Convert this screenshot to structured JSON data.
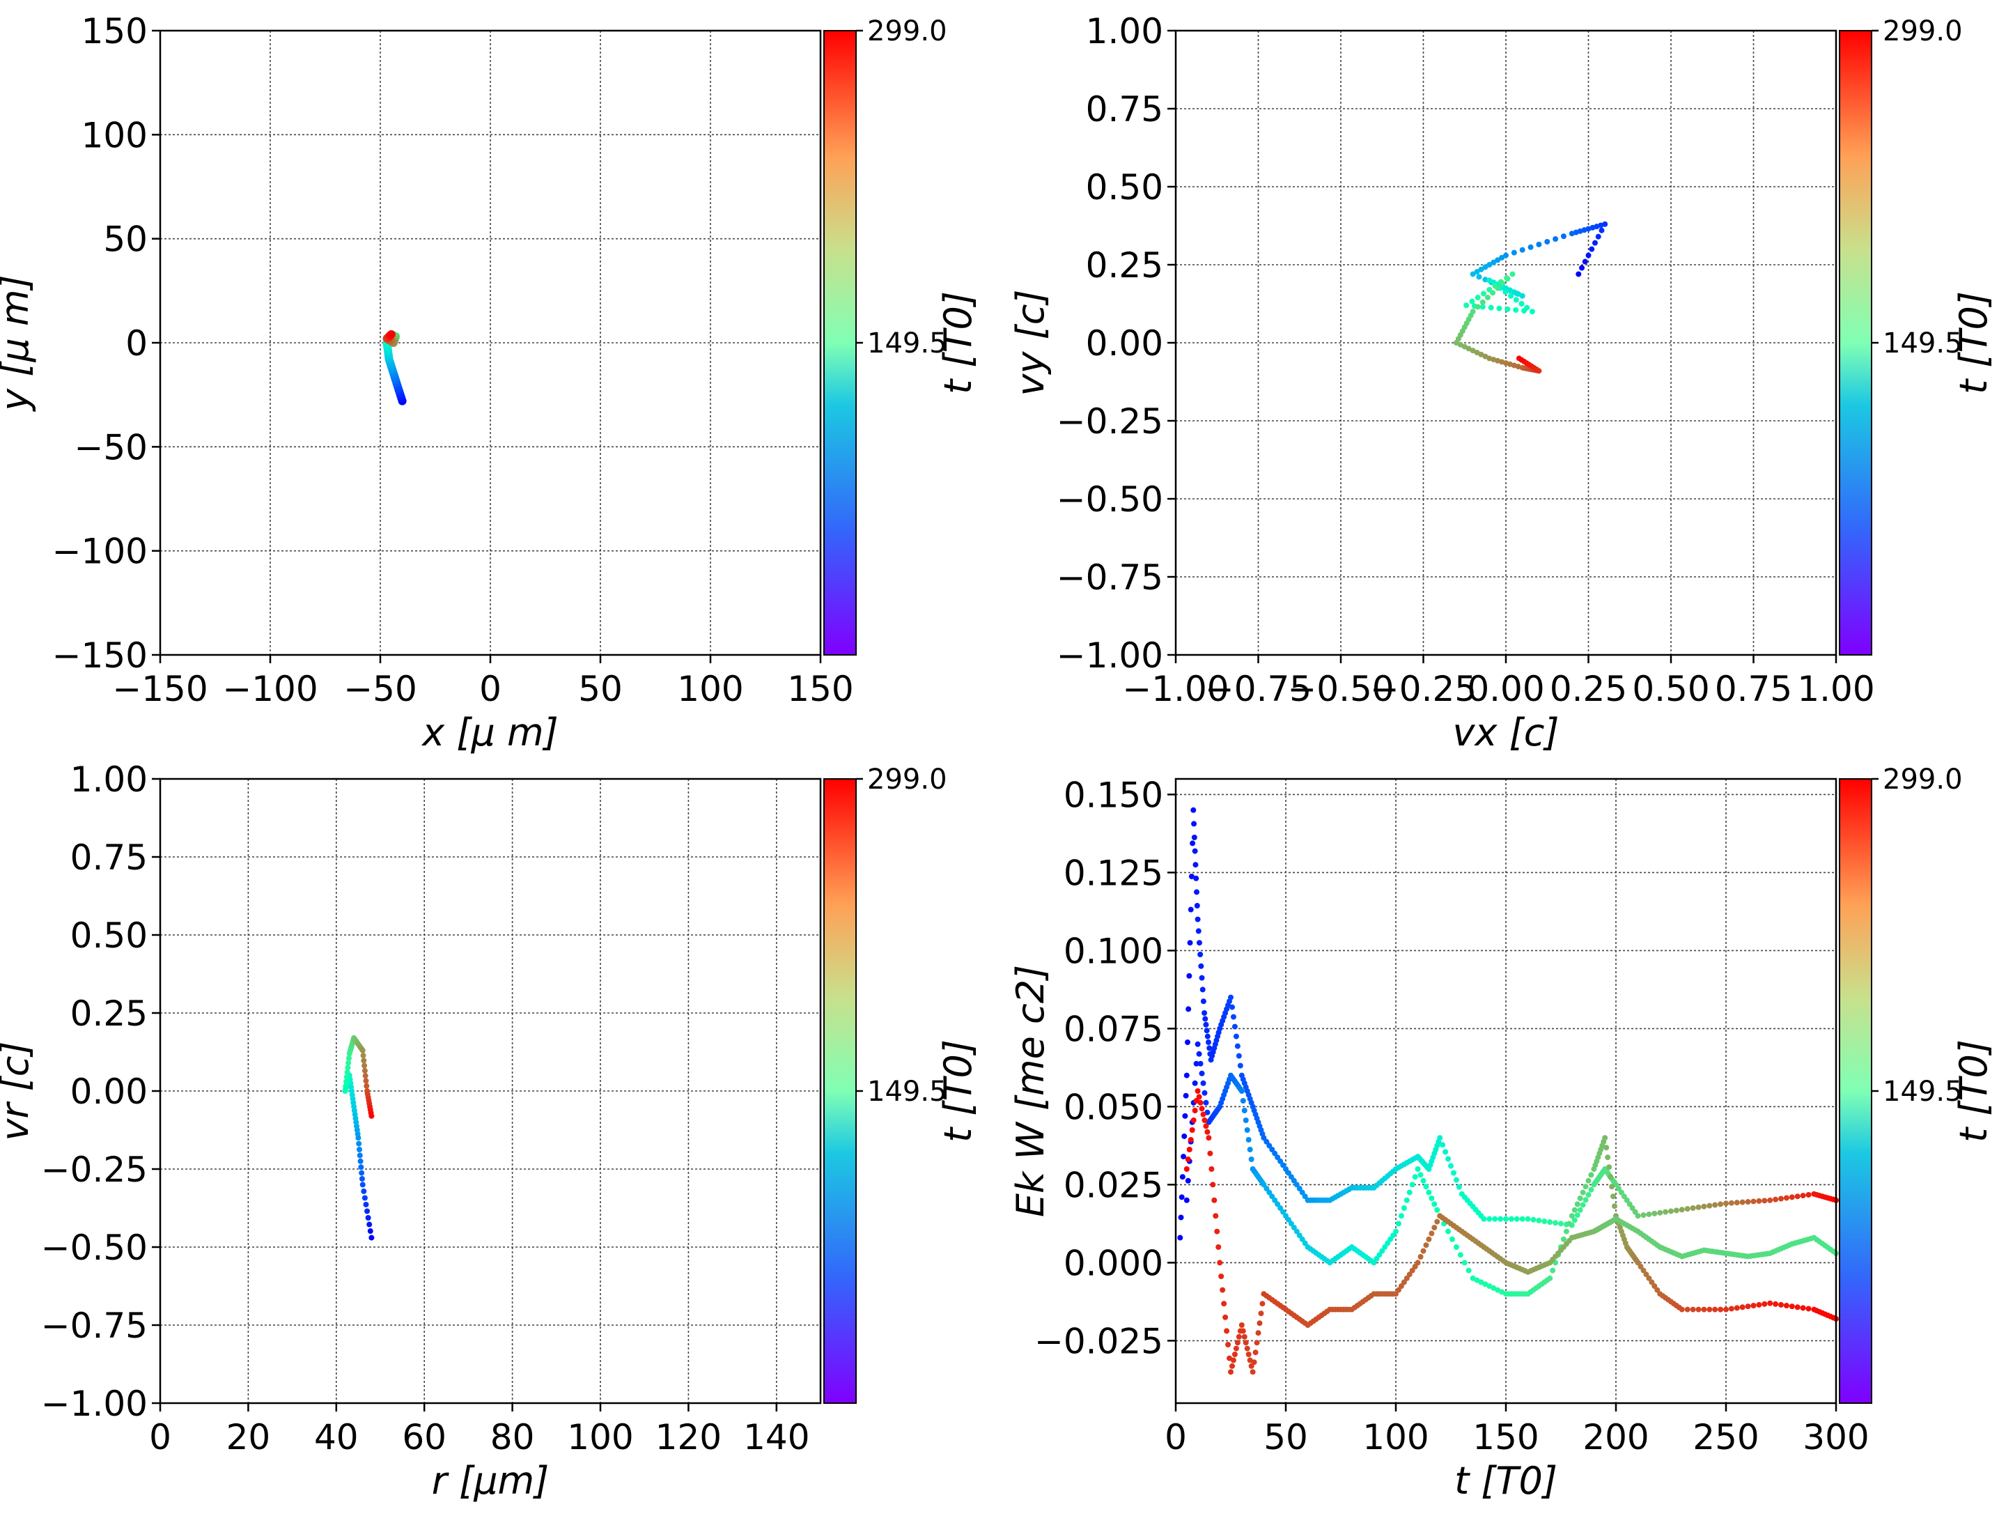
{
  "chart_data": [
    {
      "type": "scatter",
      "xlabel": "x  [μ m]",
      "ylabel": "y  [μ m]",
      "xlim": [
        -150,
        150
      ],
      "ylim": [
        -150,
        150
      ],
      "xticks": [
        "−150",
        "−100",
        "−50",
        "0",
        "50",
        "100",
        "150"
      ],
      "yticks": [
        "150",
        "100",
        "50",
        "0",
        "−50",
        "−100",
        "−150"
      ],
      "grid": true,
      "colorbar": {
        "label": "t [T0]",
        "ticks": [
          "299.0",
          "149.5"
        ],
        "range": [
          0,
          299
        ],
        "colormap": "rainbow"
      },
      "trajectory": {
        "x": [
          -40,
          -43,
          -46,
          -47,
          -45,
          -43,
          -44,
          -47,
          -45
        ],
        "y": [
          -28,
          -18,
          -8,
          0,
          4,
          3,
          0,
          2,
          4
        ],
        "t": [
          0,
          40,
          80,
          120,
          160,
          200,
          240,
          270,
          299
        ]
      }
    },
    {
      "type": "scatter",
      "xlabel": "vx [c]",
      "ylabel": "vy [c]",
      "xlim": [
        -1.0,
        1.0
      ],
      "ylim": [
        -1.0,
        1.0
      ],
      "xticks": [
        "−1.00",
        "−0.75",
        "−0.50",
        "−0.25",
        "0.00",
        "0.25",
        "0.50",
        "0.75",
        "1.00"
      ],
      "yticks": [
        "1.00",
        "0.75",
        "0.50",
        "0.25",
        "0.00",
        "−0.25",
        "−0.50",
        "−0.75",
        "−1.00"
      ],
      "grid": true,
      "colorbar": {
        "label": "t [T0]",
        "ticks": [
          "299.0",
          "149.5"
        ],
        "range": [
          0,
          299
        ],
        "colormap": "rainbow"
      },
      "trajectory": {
        "vx": [
          0.22,
          0.3,
          0.2,
          0.0,
          -0.1,
          0.05,
          -0.05,
          0.08,
          -0.12,
          0.02,
          -0.1,
          -0.15,
          -0.05,
          0.05,
          0.1,
          0.04
        ],
        "vy": [
          0.22,
          0.38,
          0.35,
          0.28,
          0.22,
          0.15,
          0.2,
          0.1,
          0.12,
          0.22,
          0.1,
          0.0,
          -0.05,
          -0.08,
          -0.09,
          -0.05
        ],
        "t": [
          0,
          20,
          40,
          60,
          80,
          100,
          120,
          140,
          160,
          180,
          200,
          220,
          240,
          260,
          280,
          299
        ]
      }
    },
    {
      "type": "scatter",
      "xlabel": "r [μm]",
      "ylabel": "vr [c]",
      "xlim": [
        0,
        150
      ],
      "ylim": [
        -1.0,
        1.0
      ],
      "xticks": [
        "0",
        "20",
        "40",
        "60",
        "80",
        "100",
        "120",
        "140"
      ],
      "yticks": [
        "1.00",
        "0.75",
        "0.50",
        "0.25",
        "0.00",
        "−0.25",
        "−0.50",
        "−0.75",
        "−1.00"
      ],
      "grid": true,
      "colorbar": {
        "label": "t [T0]",
        "ticks": [
          "299.0",
          "149.5"
        ],
        "range": [
          0,
          299
        ],
        "colormap": "rainbow"
      },
      "trajectory": {
        "r": [
          48,
          46,
          45,
          44,
          43,
          42,
          43,
          44,
          46,
          47,
          48
        ],
        "vr": [
          -0.47,
          -0.3,
          -0.15,
          -0.05,
          0.05,
          0.0,
          0.12,
          0.17,
          0.13,
          0.0,
          -0.08
        ],
        "t": [
          0,
          30,
          60,
          90,
          120,
          150,
          180,
          210,
          240,
          270,
          299
        ]
      }
    },
    {
      "type": "scatter",
      "xlabel": "t [T0]",
      "ylabel": "Ek W [me c2]",
      "xlim": [
        0,
        300
      ],
      "ylim": [
        -0.045,
        0.155
      ],
      "xticks": [
        "0",
        "50",
        "100",
        "150",
        "200",
        "250",
        "300"
      ],
      "yticks": [
        "0.150",
        "0.125",
        "0.100",
        "0.075",
        "0.050",
        "0.025",
        "0.000",
        "−0.025"
      ],
      "grid": true,
      "colorbar": {
        "label": "t [T0]",
        "ticks": [
          "299.0",
          "149.5"
        ],
        "range": [
          0,
          299
        ],
        "colormap": "rainbow"
      },
      "series": [
        {
          "x": [
            2,
            5,
            8,
            10,
            13,
            16,
            20,
            25,
            30,
            35,
            40,
            50,
            60,
            70,
            80,
            90,
            100,
            110,
            115,
            120,
            130,
            140,
            160,
            180,
            190,
            195,
            200,
            210,
            230,
            250,
            270,
            290,
            300
          ],
          "y": [
            0.008,
            0.06,
            0.145,
            0.11,
            0.08,
            0.065,
            0.075,
            0.085,
            0.06,
            0.05,
            0.04,
            0.03,
            0.02,
            0.02,
            0.024,
            0.024,
            0.03,
            0.034,
            0.03,
            0.04,
            0.022,
            0.014,
            0.014,
            0.012,
            0.025,
            0.03,
            0.025,
            0.015,
            0.017,
            0.019,
            0.02,
            0.022,
            0.02
          ],
          "t": [
            0,
            3,
            6,
            10,
            13,
            16,
            20,
            25,
            30,
            35,
            40,
            50,
            60,
            70,
            80,
            90,
            100,
            110,
            115,
            120,
            130,
            140,
            160,
            180,
            190,
            195,
            200,
            210,
            230,
            250,
            270,
            290,
            299
          ]
        },
        {
          "x": [
            5,
            10,
            15,
            20,
            25,
            30,
            35,
            40,
            50,
            60,
            70,
            80,
            90,
            100,
            110,
            120,
            135,
            150,
            160,
            170,
            180,
            190,
            195,
            200,
            205,
            210,
            220,
            230,
            250,
            270,
            290,
            300
          ],
          "y": [
            0.02,
            0.07,
            0.045,
            0.05,
            0.06,
            0.055,
            0.03,
            0.025,
            0.015,
            0.005,
            0.0,
            0.005,
            0.0,
            0.01,
            0.03,
            0.015,
            -0.005,
            -0.01,
            -0.01,
            -0.005,
            0.015,
            0.03,
            0.04,
            0.015,
            0.005,
            0.0,
            -0.01,
            -0.015,
            -0.015,
            -0.013,
            -0.015,
            -0.018
          ],
          "t": [
            0,
            10,
            20,
            30,
            40,
            50,
            60,
            70,
            80,
            90,
            100,
            110,
            120,
            130,
            140,
            150,
            160,
            170,
            180,
            190,
            200,
            210,
            220,
            230,
            240,
            250,
            260,
            270,
            280,
            290,
            295,
            299
          ]
        },
        {
          "x": [
            5,
            10,
            15,
            20,
            25,
            30,
            35,
            40,
            50,
            60,
            70,
            80,
            90,
            100,
            110,
            120,
            130,
            140,
            150,
            160,
            170,
            180,
            190,
            195,
            200,
            210,
            220,
            230,
            240,
            250,
            260,
            270,
            280,
            290,
            300
          ],
          "y": [
            0.03,
            0.055,
            0.04,
            0.0,
            -0.035,
            -0.02,
            -0.035,
            -0.01,
            -0.015,
            -0.02,
            -0.015,
            -0.015,
            -0.01,
            -0.01,
            0.0,
            0.015,
            0.01,
            0.005,
            0.0,
            -0.003,
            0.0,
            0.008,
            0.01,
            0.012,
            0.014,
            0.01,
            0.005,
            0.002,
            0.004,
            0.003,
            0.002,
            0.003,
            0.006,
            0.008,
            0.003
          ],
          "t": [
            299,
            295,
            290,
            285,
            280,
            278,
            276,
            274,
            272,
            270,
            268,
            266,
            264,
            262,
            260,
            255,
            250,
            245,
            240,
            235,
            230,
            225,
            220,
            215,
            212,
            210,
            208,
            206,
            204,
            202,
            200,
            198,
            196,
            194,
            192
          ]
        }
      ]
    }
  ]
}
